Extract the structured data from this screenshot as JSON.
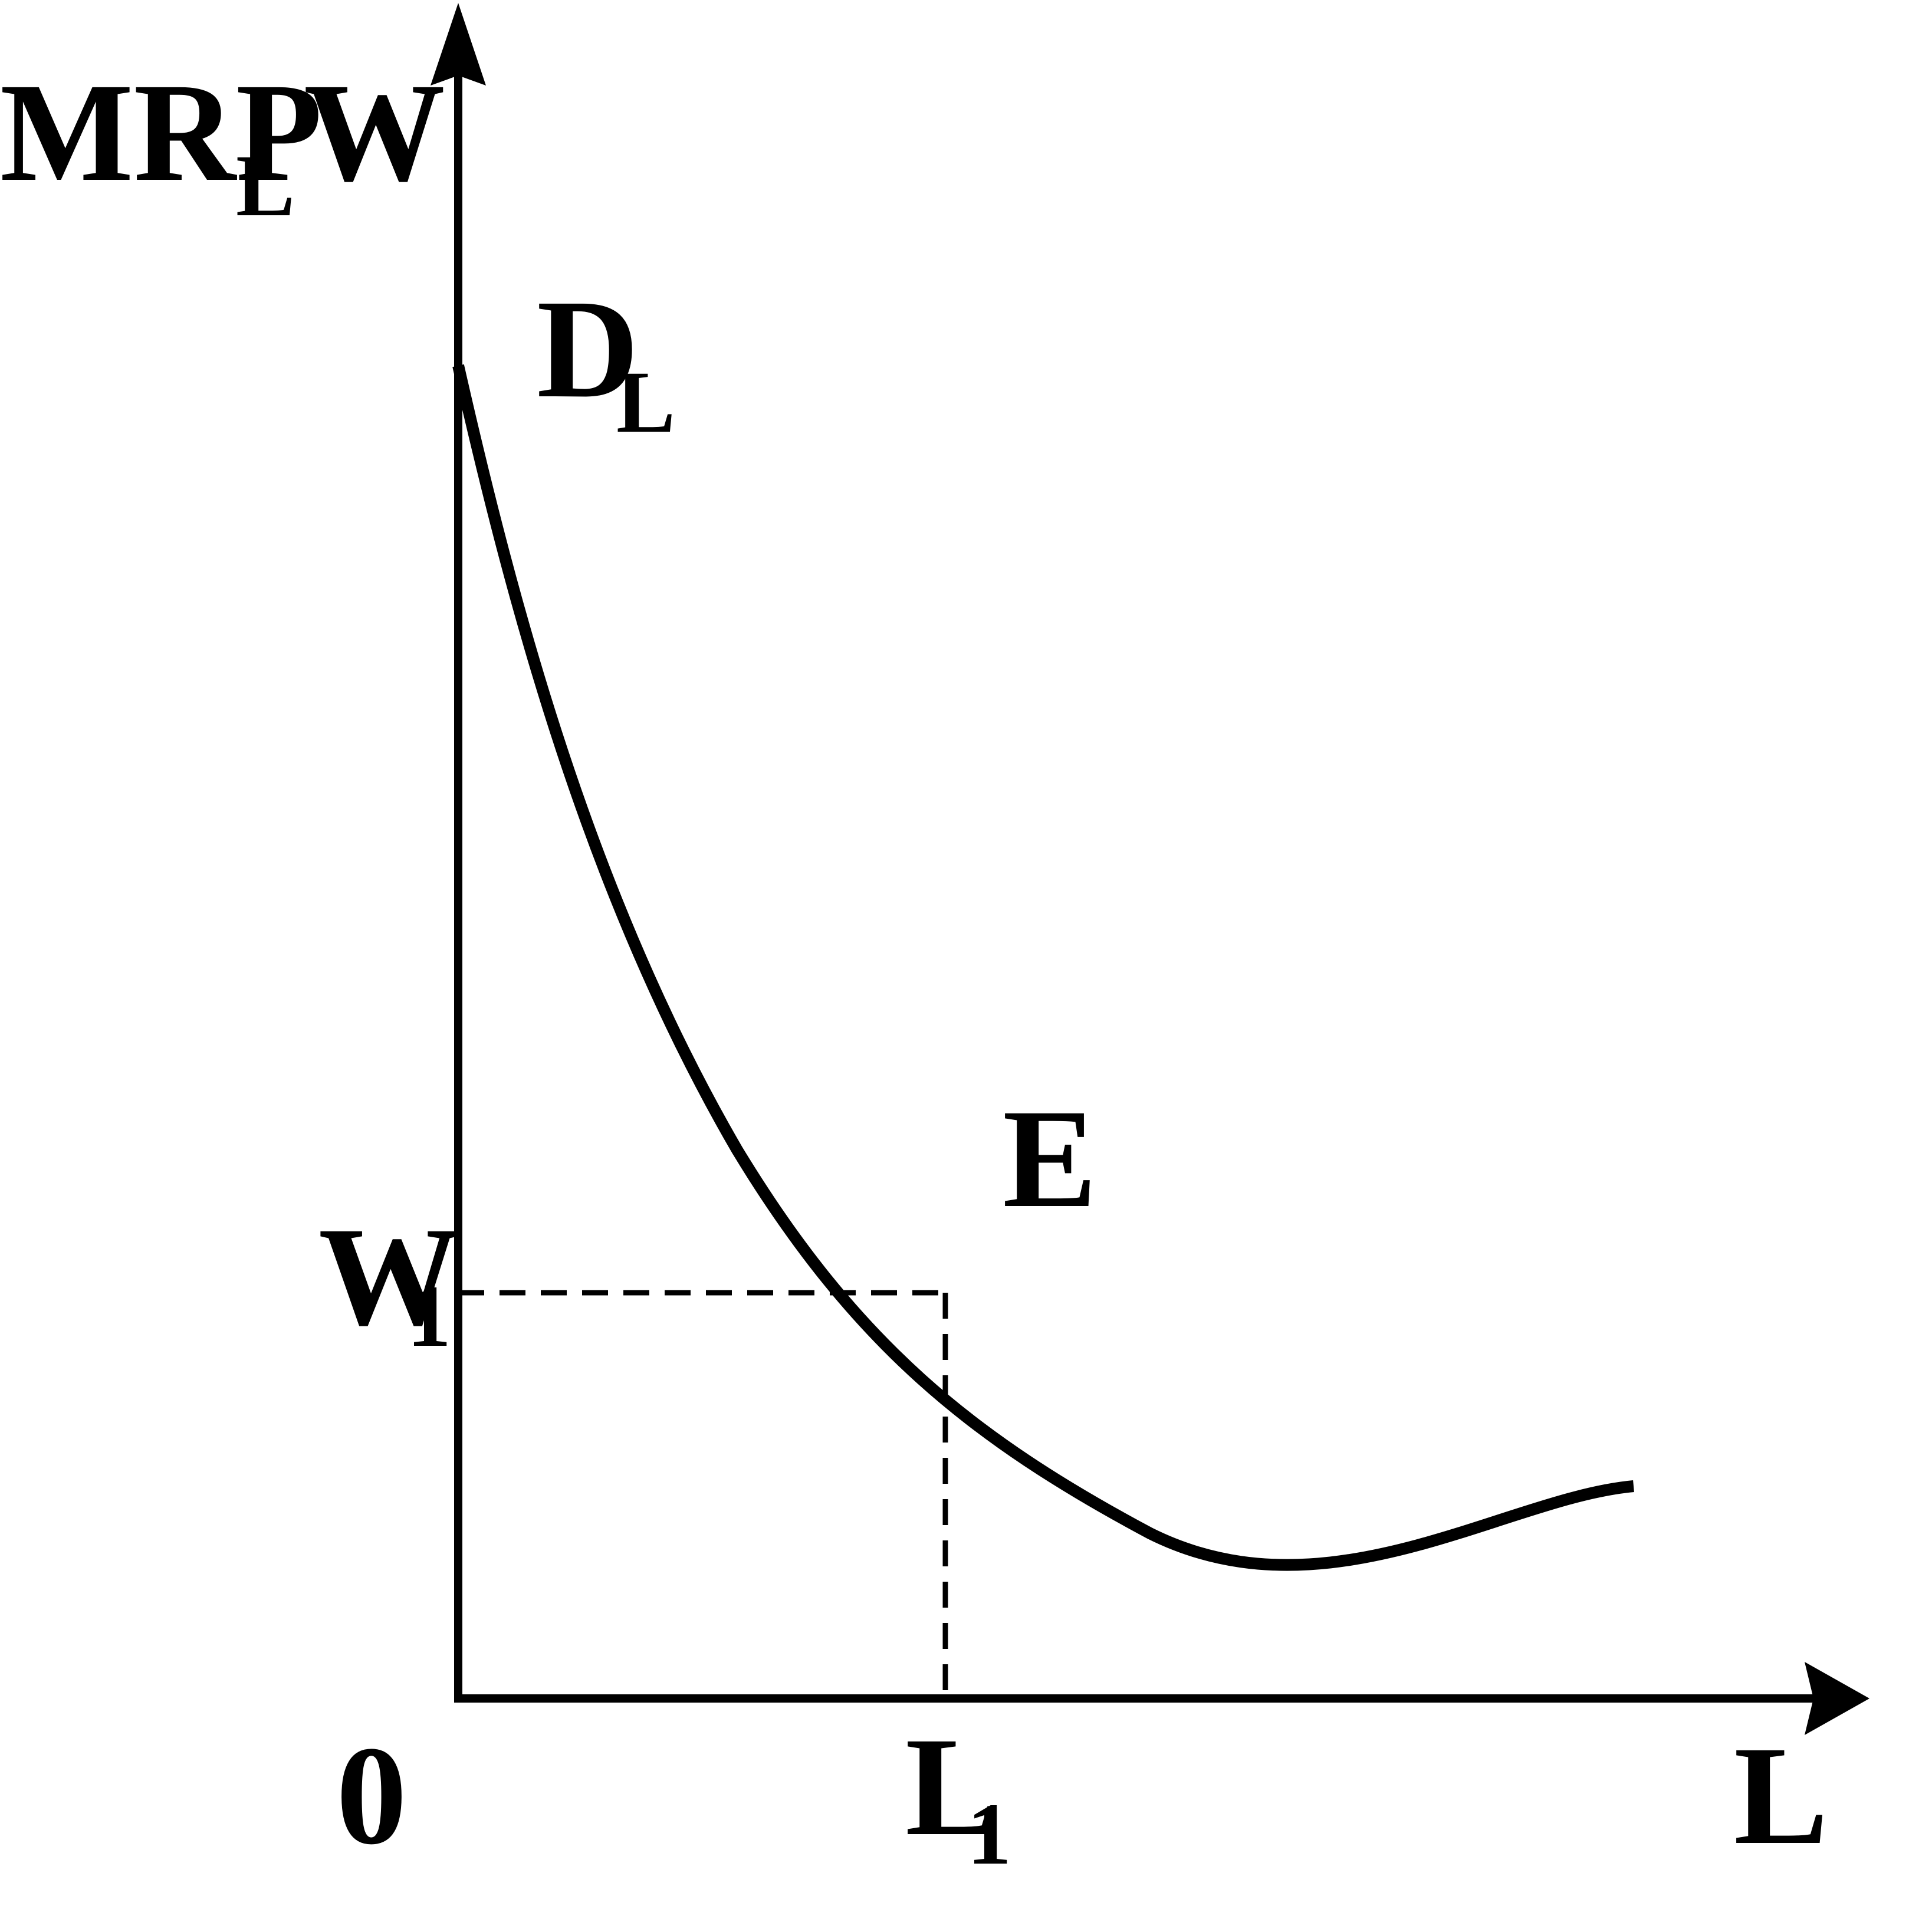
{
  "diagram": {
    "y_axis_label_main": "MRP",
    "y_axis_label_sub": "L",
    "y_axis_label_w": "W",
    "x_axis_label": "L",
    "origin_label": "0",
    "curve_label_main": "D",
    "curve_label_sub": "L",
    "point_label": "E",
    "wage_label_main": "W",
    "wage_label_sub": "1",
    "quantity_label_main": "L",
    "quantity_label_sub": "1"
  },
  "colors": {
    "ink": "#000000",
    "background": "#ffffff"
  }
}
